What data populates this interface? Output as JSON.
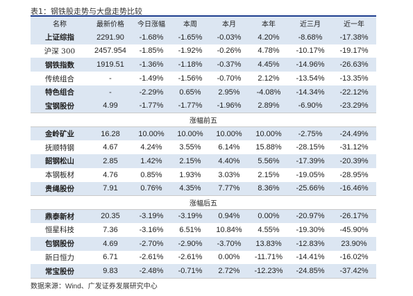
{
  "caption": "表1：钢铁股走势与大盘走势比较",
  "columns": [
    "名称",
    "最新价格",
    "今日涨幅",
    "本周",
    "本月",
    "本年",
    "近三月",
    "近一年"
  ],
  "rows_indices": [
    {
      "name": "上证综指",
      "price": "2291.90",
      "today": "-1.68%",
      "week": "-1.65%",
      "month": "-0.03%",
      "year": "4.20%",
      "m3": "-8.68%",
      "y1": "-17.38%"
    },
    {
      "name": "沪深 300",
      "price": "2457.954",
      "today": "-1.85%",
      "week": "-1.92%",
      "month": "-0.26%",
      "year": "4.78%",
      "m3": "-10.17%",
      "y1": "-19.17%"
    },
    {
      "name": "钢铁指数",
      "price": "1919.51",
      "today": "-1.36%",
      "week": "-1.18%",
      "month": "-0.37%",
      "year": "4.45%",
      "m3": "-14.96%",
      "y1": "-26.63%"
    },
    {
      "name": "传统组合",
      "price": "-",
      "today": "-1.49%",
      "week": "-1.56%",
      "month": "-0.70%",
      "year": "2.12%",
      "m3": "-13.54%",
      "y1": "-13.35%"
    },
    {
      "name": "特色组合",
      "price": "-",
      "today": "-2.29%",
      "week": "0.65%",
      "month": "2.95%",
      "year": "-4.08%",
      "m3": "-14.34%",
      "y1": "-22.12%"
    },
    {
      "name": "宝钢股份",
      "price": "4.99",
      "today": "-1.77%",
      "week": "-1.77%",
      "month": "-1.96%",
      "year": "2.89%",
      "m3": "-6.90%",
      "y1": "-23.29%"
    }
  ],
  "section_gainers": "涨幅前五",
  "rows_gainers": [
    {
      "name": "金岭矿业",
      "price": "16.28",
      "today": "10.00%",
      "week": "10.00%",
      "month": "10.00%",
      "year": "10.00%",
      "m3": "-2.75%",
      "y1": "-24.49%"
    },
    {
      "name": "抚顺特钢",
      "price": "4.67",
      "today": "4.24%",
      "week": "3.55%",
      "month": "6.14%",
      "year": "15.88%",
      "m3": "-28.15%",
      "y1": "-31.12%"
    },
    {
      "name": "韶钢松山",
      "price": "2.85",
      "today": "1.42%",
      "week": "2.15%",
      "month": "4.40%",
      "year": "5.56%",
      "m3": "-17.39%",
      "y1": "-20.39%"
    },
    {
      "name": "本钢板材",
      "price": "4.76",
      "today": "0.85%",
      "week": "1.93%",
      "month": "3.03%",
      "year": "2.15%",
      "m3": "-19.05%",
      "y1": "-28.95%"
    },
    {
      "name": "贵绳股份",
      "price": "7.91",
      "today": "0.76%",
      "week": "4.35%",
      "month": "7.77%",
      "year": "8.36%",
      "m3": "-25.66%",
      "y1": "-16.46%"
    }
  ],
  "section_losers": "涨幅后五",
  "rows_losers": [
    {
      "name": "鼎泰新材",
      "price": "20.35",
      "today": "-3.19%",
      "week": "-3.19%",
      "month": "0.94%",
      "year": "0.00%",
      "m3": "-20.97%",
      "y1": "-26.17%"
    },
    {
      "name": "恒星科技",
      "price": "7.36",
      "today": "-3.16%",
      "week": "6.51%",
      "month": "10.84%",
      "year": "4.55%",
      "m3": "-19.30%",
      "y1": "-45.90%"
    },
    {
      "name": "包钢股份",
      "price": "4.69",
      "today": "-2.70%",
      "week": "-2.90%",
      "month": "-3.70%",
      "year": "13.83%",
      "m3": "-12.83%",
      "y1": "23.90%"
    },
    {
      "name": "新日恒力",
      "price": "6.71",
      "today": "-2.61%",
      "week": "-2.61%",
      "month": "0.00%",
      "year": "-11.71%",
      "m3": "-14.41%",
      "y1": "-16.02%"
    },
    {
      "name": "常宝股份",
      "price": "9.83",
      "today": "-2.48%",
      "week": "-0.71%",
      "month": "2.72%",
      "year": "-12.23%",
      "m3": "-24.85%",
      "y1": "-37.42%"
    }
  ],
  "source_prefix": "数据来源：",
  "source_en": "Wind",
  "source_suffix": "、广发证券发展研究中心"
}
